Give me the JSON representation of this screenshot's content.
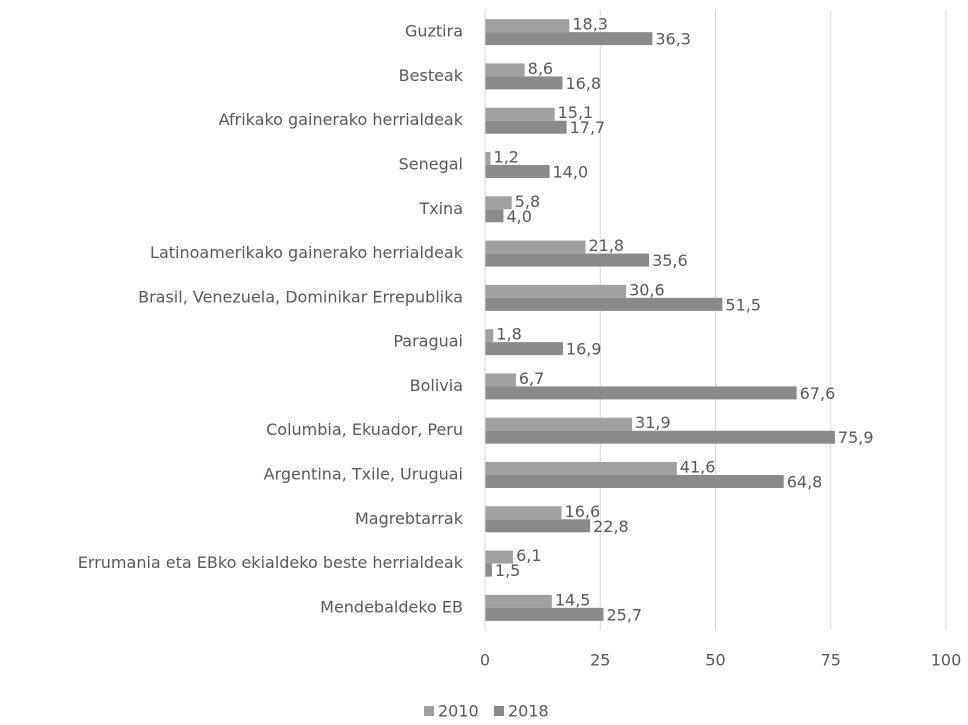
{
  "chart_data": {
    "type": "bar",
    "orientation": "horizontal",
    "categories": [
      "Guztira",
      "Besteak",
      "Afrikako gainerako herrialdeak",
      "Senegal",
      "Txina",
      "Latinoamerikako gainerako herrialdeak",
      "Brasil, Venezuela, Dominikar Errepublika",
      "Paraguai",
      "Bolivia",
      "Columbia, Ekuador, Peru",
      "Argentina, Txile, Uruguai",
      "Magrebtarrak",
      "Errumania eta EBko ekialdeko beste herrialdeak",
      "Mendebaldeko EB"
    ],
    "series": [
      {
        "name": "2010",
        "color": "#a0a0a0",
        "values": [
          18.3,
          8.6,
          15.1,
          1.2,
          5.8,
          21.8,
          30.6,
          1.8,
          6.7,
          31.9,
          41.6,
          16.6,
          6.1,
          14.5
        ],
        "value_labels": [
          "18,3",
          "8,6",
          "15,1",
          "1,2",
          "5,8",
          "21,8",
          "30,6",
          "1,8",
          "6,7",
          "31,9",
          "41,6",
          "16,6",
          "6,1",
          "14,5"
        ]
      },
      {
        "name": "2018",
        "color": "#8a8a8a",
        "values": [
          36.3,
          16.8,
          17.7,
          14.0,
          4.0,
          35.6,
          51.5,
          16.9,
          67.6,
          75.9,
          64.8,
          22.8,
          1.5,
          25.7
        ],
        "value_labels": [
          "36,3",
          "16,8",
          "17,7",
          "14,0",
          "4,0",
          "35,6",
          "51,5",
          "16,9",
          "67,6",
          "75,9",
          "64,8",
          "22,8",
          "1,5",
          "25,7"
        ]
      }
    ],
    "xlim": [
      0,
      100
    ],
    "xticks": [
      0,
      25,
      50,
      75,
      100
    ],
    "grid": true,
    "legend": "bottom"
  }
}
